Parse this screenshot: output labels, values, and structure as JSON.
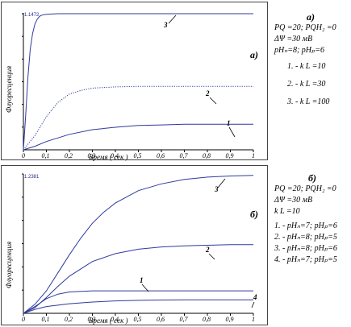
{
  "chart_data": [
    {
      "type": "line",
      "panel_label": "а)",
      "xlabel": "Время ( сек )",
      "ylabel": "Флуоресценция",
      "xlim": [
        0,
        1
      ],
      "ylim": [
        0,
        1.1472
      ],
      "y_max_label": "1.1472",
      "x_ticks": [
        "0",
        "0,1",
        "0,2",
        "0,3",
        "0,4",
        "0,5",
        "0,6",
        "0,7",
        "0,8",
        "0,9",
        "1"
      ],
      "series": [
        {
          "label": "1",
          "style": "solid",
          "x": [
            0,
            0.05,
            0.1,
            0.2,
            0.3,
            0.4,
            0.5,
            0.6,
            0.7,
            0.8,
            0.9,
            1.0
          ],
          "y": [
            0,
            0.03,
            0.07,
            0.13,
            0.17,
            0.19,
            0.205,
            0.21,
            0.215,
            0.215,
            0.215,
            0.215
          ]
        },
        {
          "label": "2",
          "style": "dotted",
          "x": [
            0,
            0.05,
            0.1,
            0.15,
            0.2,
            0.25,
            0.3,
            0.4,
            0.5,
            0.6,
            0.7,
            0.8,
            0.9,
            1.0
          ],
          "y": [
            0,
            0.12,
            0.28,
            0.4,
            0.47,
            0.5,
            0.52,
            0.53,
            0.535,
            0.535,
            0.535,
            0.535,
            0.535,
            0.535
          ]
        },
        {
          "label": "3",
          "style": "solid",
          "x": [
            0,
            0.01,
            0.02,
            0.03,
            0.04,
            0.05,
            0.06,
            0.07,
            0.08,
            0.1,
            0.15,
            0.2,
            0.4,
            0.6,
            0.8,
            1.0
          ],
          "y": [
            0,
            0.3,
            0.62,
            0.85,
            0.98,
            1.06,
            1.1,
            1.125,
            1.135,
            1.142,
            1.147,
            1.1472,
            1.1472,
            1.1472,
            1.1472,
            1.1472
          ]
        }
      ]
    },
    {
      "type": "line",
      "panel_label": "б)",
      "xlabel": "Время ( сек )",
      "ylabel": "Флуоресценция",
      "xlim": [
        0,
        1
      ],
      "ylim": [
        0,
        1.2381
      ],
      "y_max_label": "1.2381",
      "x_ticks": [
        "0",
        "0,1",
        "0,2",
        "0,3",
        "0,4",
        "0,5",
        "0,6",
        "0,7",
        "0,8",
        "0,9",
        "1"
      ],
      "series": [
        {
          "label": "1",
          "style": "solid",
          "x": [
            0,
            0.05,
            0.1,
            0.15,
            0.2,
            0.3,
            0.4,
            0.5,
            0.6,
            0.7,
            0.8,
            0.9,
            1.0
          ],
          "y": [
            0,
            0.06,
            0.13,
            0.17,
            0.19,
            0.2,
            0.2,
            0.2,
            0.2,
            0.2,
            0.2,
            0.2,
            0.2
          ]
        },
        {
          "label": "2",
          "style": "solid",
          "x": [
            0,
            0.05,
            0.1,
            0.15,
            0.2,
            0.3,
            0.4,
            0.5,
            0.6,
            0.7,
            0.8,
            0.9,
            1.0
          ],
          "y": [
            0,
            0.05,
            0.14,
            0.24,
            0.33,
            0.46,
            0.53,
            0.57,
            0.59,
            0.6,
            0.605,
            0.61,
            0.61
          ]
        },
        {
          "label": "3",
          "style": "solid",
          "x": [
            0,
            0.05,
            0.1,
            0.15,
            0.2,
            0.25,
            0.3,
            0.35,
            0.4,
            0.5,
            0.6,
            0.7,
            0.8,
            0.9,
            1.0
          ],
          "y": [
            0,
            0.08,
            0.2,
            0.36,
            0.52,
            0.67,
            0.8,
            0.9,
            0.98,
            1.09,
            1.15,
            1.19,
            1.21,
            1.22,
            1.225
          ]
        },
        {
          "label": "4",
          "style": "solid",
          "x": [
            0,
            0.05,
            0.1,
            0.2,
            0.3,
            0.4,
            0.5,
            0.6,
            0.7,
            0.8,
            0.9,
            1.0
          ],
          "y": [
            0,
            0.035,
            0.06,
            0.085,
            0.1,
            0.11,
            0.115,
            0.118,
            0.12,
            0.12,
            0.12,
            0.12
          ]
        }
      ]
    }
  ],
  "legend_a": {
    "title": "а)",
    "lines": [
      "PQ =20; PQH₂ =0",
      "ΔΨ =30 мВ",
      "pHₙ=8; pHₚ=6",
      "1. -   k L =10",
      "2. -   k L =30",
      "3. -  k L =100"
    ]
  },
  "legend_b": {
    "title": "б)",
    "lines": [
      "PQ =20; PQH₂ =0",
      "ΔΨ =30 мВ",
      "k L =10",
      "1. - pHₙ=7; pHₚ=6",
      "2. - pHₙ=8; pHₚ=5",
      "3. - pHₙ=8; pHₚ=6",
      "4. - pHₙ=7; pHₚ=5"
    ]
  }
}
